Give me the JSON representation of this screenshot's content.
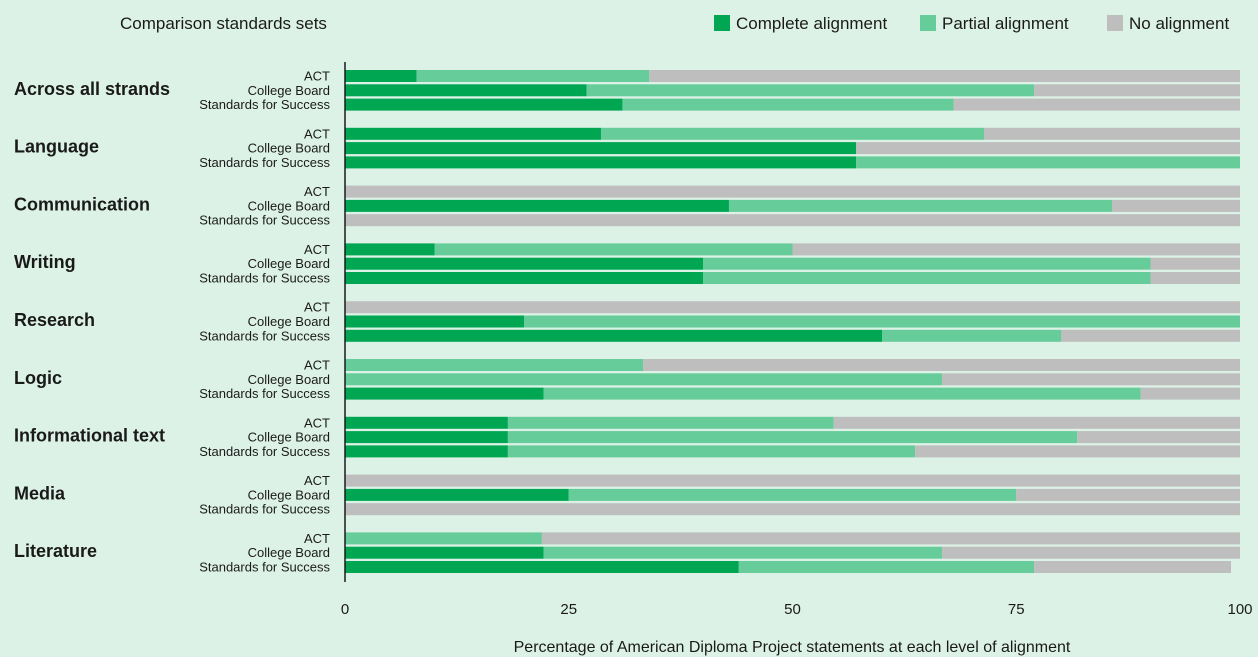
{
  "chart_data": {
    "type": "bar",
    "orientation": "horizontal",
    "stacked": true,
    "legend_title": "Comparison standards sets",
    "legend_position": "top-right",
    "xlabel": "Percentage of American Diploma Project statements at each level of alignment",
    "xlim": [
      0,
      100
    ],
    "xticks": [
      "0",
      "25",
      "50",
      "75",
      "100"
    ],
    "grid": false,
    "series": [
      {
        "name": "Complete alignment",
        "color": "#00a651"
      },
      {
        "name": "Partial alignment",
        "color": "#66cc99"
      },
      {
        "name": "No alignment",
        "color": "#bebebe"
      }
    ],
    "sets": [
      "ACT",
      "College Board",
      "Standards for Success"
    ],
    "groups": [
      {
        "label": "Across all strands",
        "bars": [
          {
            "set": "ACT",
            "complete": 8,
            "partial": 26,
            "none": 66
          },
          {
            "set": "College Board",
            "complete": 27,
            "partial": 50,
            "none": 23
          },
          {
            "set": "Standards for Success",
            "complete": 31,
            "partial": 37,
            "none": 32
          }
        ]
      },
      {
        "label": "Language",
        "bars": [
          {
            "set": "ACT",
            "complete": 28.6,
            "partial": 42.8,
            "none": 28.6
          },
          {
            "set": "College Board",
            "complete": 57.1,
            "partial": 0,
            "none": 42.9
          },
          {
            "set": "Standards for Success",
            "complete": 57.1,
            "partial": 42.9,
            "none": 0
          }
        ]
      },
      {
        "label": "Communication",
        "bars": [
          {
            "set": "ACT",
            "complete": 0,
            "partial": 0,
            "none": 100
          },
          {
            "set": "College Board",
            "complete": 42.9,
            "partial": 42.8,
            "none": 14.3
          },
          {
            "set": "Standards for Success",
            "complete": 0,
            "partial": 0,
            "none": 100
          }
        ]
      },
      {
        "label": "Writing",
        "bars": [
          {
            "set": "ACT",
            "complete": 10,
            "partial": 40,
            "none": 50
          },
          {
            "set": "College Board",
            "complete": 40,
            "partial": 50,
            "none": 10
          },
          {
            "set": "Standards for Success",
            "complete": 40,
            "partial": 50,
            "none": 10
          }
        ]
      },
      {
        "label": "Research",
        "bars": [
          {
            "set": "ACT",
            "complete": 0,
            "partial": 0,
            "none": 100
          },
          {
            "set": "College Board",
            "complete": 20,
            "partial": 80,
            "none": 0
          },
          {
            "set": "Standards for Success",
            "complete": 60,
            "partial": 20,
            "none": 20
          }
        ]
      },
      {
        "label": "Logic",
        "bars": [
          {
            "set": "ACT",
            "complete": 0,
            "partial": 33.3,
            "none": 66.7
          },
          {
            "set": "College Board",
            "complete": 0,
            "partial": 66.7,
            "none": 33.3
          },
          {
            "set": "Standards for Success",
            "complete": 22.2,
            "partial": 66.7,
            "none": 11.1
          }
        ]
      },
      {
        "label": "Informational text",
        "bars": [
          {
            "set": "ACT",
            "complete": 18.2,
            "partial": 36.4,
            "none": 45.4
          },
          {
            "set": "College Board",
            "complete": 18.2,
            "partial": 63.6,
            "none": 18.2
          },
          {
            "set": "Standards for Success",
            "complete": 18.2,
            "partial": 45.5,
            "none": 36.3
          }
        ]
      },
      {
        "label": "Media",
        "bars": [
          {
            "set": "ACT",
            "complete": 0,
            "partial": 0,
            "none": 100
          },
          {
            "set": "College Board",
            "complete": 25,
            "partial": 50,
            "none": 25
          },
          {
            "set": "Standards for Success",
            "complete": 0,
            "partial": 0,
            "none": 100
          }
        ]
      },
      {
        "label": "Literature",
        "bars": [
          {
            "set": "ACT",
            "complete": 0,
            "partial": 22,
            "none": 78
          },
          {
            "set": "College Board",
            "complete": 22.2,
            "partial": 44.5,
            "none": 33.3
          },
          {
            "set": "Standards for Success",
            "complete": 44,
            "partial": 33,
            "none": 22
          }
        ]
      }
    ]
  }
}
